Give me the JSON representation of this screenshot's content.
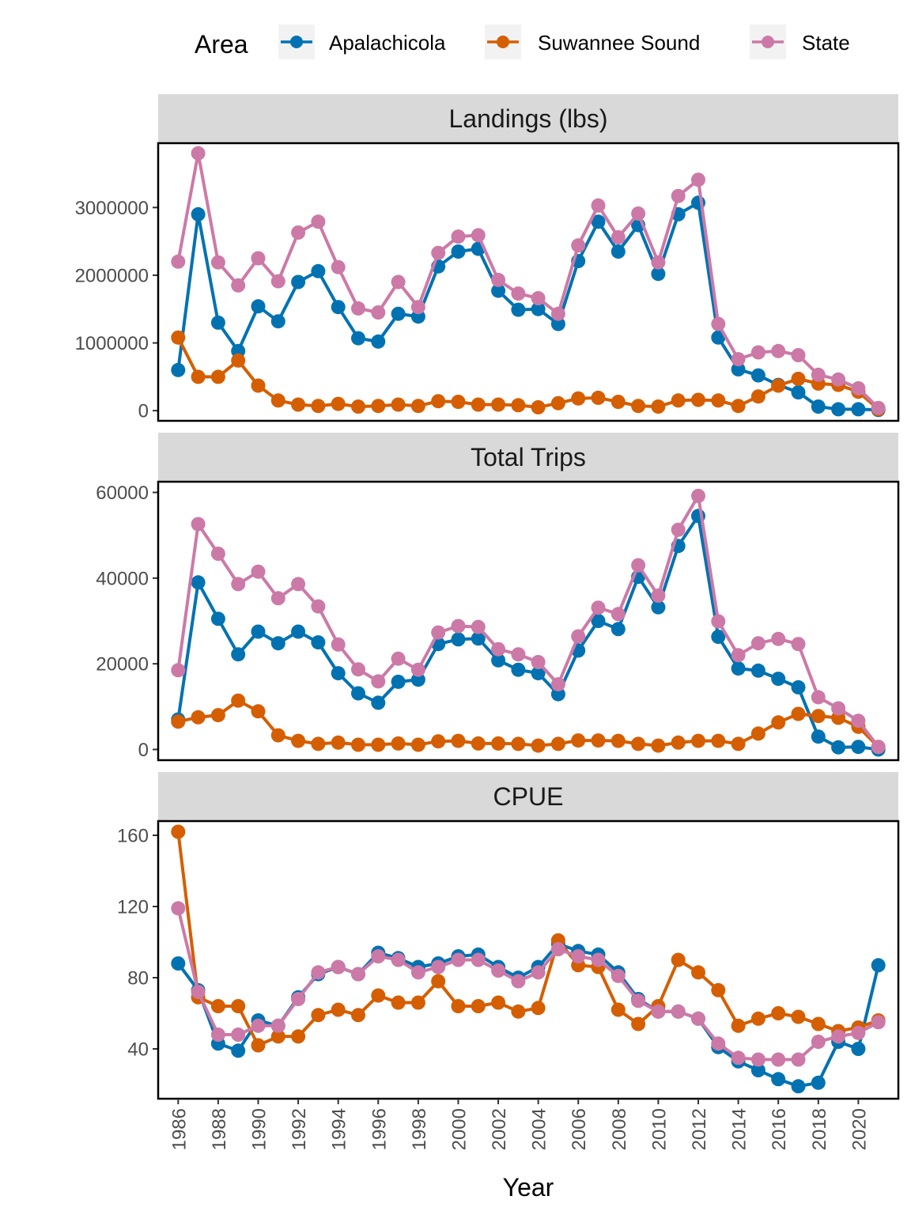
{
  "legend": {
    "title": "Area",
    "position": "top",
    "entries": [
      {
        "name": "Apalachicola",
        "color": "#0072B2"
      },
      {
        "name": "Suwannee Sound",
        "color": "#D55E00"
      },
      {
        "name": "State",
        "color": "#CC79A7"
      }
    ]
  },
  "xlabel": "Year",
  "chart_data": {
    "type": "line",
    "x": [
      1986,
      1987,
      1988,
      1989,
      1990,
      1991,
      1992,
      1993,
      1994,
      1995,
      1996,
      1997,
      1998,
      1999,
      2000,
      2001,
      2002,
      2003,
      2004,
      2005,
      2006,
      2007,
      2008,
      2009,
      2010,
      2011,
      2012,
      2013,
      2014,
      2015,
      2016,
      2017,
      2018,
      2019,
      2020,
      2021
    ],
    "x_ticks": [
      1986,
      1988,
      1990,
      1992,
      1994,
      1996,
      1998,
      2000,
      2002,
      2004,
      2006,
      2008,
      2010,
      2012,
      2014,
      2016,
      2018,
      2020
    ],
    "xlim": [
      1985,
      2022
    ],
    "xlabel": "Year",
    "panels": [
      {
        "title": "Landings (lbs)",
        "ylim": [
          -150000,
          3950000
        ],
        "y_ticks": [
          0,
          1000000,
          2000000,
          3000000
        ],
        "y_tick_labels": [
          "0",
          "1000000",
          "2000000",
          "3000000"
        ],
        "series": [
          {
            "name": "Apalachicola",
            "values": [
              600000,
              2900000,
              1300000,
              880000,
              1540000,
              1320000,
              1900000,
              2060000,
              1530000,
              1070000,
              1020000,
              1430000,
              1390000,
              2130000,
              2350000,
              2390000,
              1770000,
              1490000,
              1500000,
              1280000,
              2210000,
              2790000,
              2350000,
              2740000,
              2020000,
              2900000,
              3070000,
              1080000,
              610000,
              520000,
              380000,
              270000,
              60000,
              20000,
              20000,
              10000
            ]
          },
          {
            "name": "Suwannee Sound",
            "values": [
              1080000,
              500000,
              500000,
              740000,
              370000,
              150000,
              90000,
              70000,
              100000,
              60000,
              70000,
              90000,
              70000,
              140000,
              130000,
              90000,
              90000,
              80000,
              50000,
              110000,
              180000,
              190000,
              130000,
              70000,
              60000,
              150000,
              160000,
              150000,
              70000,
              210000,
              370000,
              470000,
              400000,
              380000,
              280000,
              20000
            ]
          },
          {
            "name": "State",
            "values": [
              2200000,
              3800000,
              2190000,
              1850000,
              2250000,
              1910000,
              2630000,
              2790000,
              2120000,
              1510000,
              1450000,
              1900000,
              1530000,
              2330000,
              2570000,
              2590000,
              1930000,
              1730000,
              1660000,
              1430000,
              2440000,
              3030000,
              2560000,
              2910000,
              2190000,
              3170000,
              3410000,
              1280000,
              760000,
              860000,
              880000,
              820000,
              530000,
              460000,
              330000,
              40000
            ]
          }
        ]
      },
      {
        "title": "Total Trips",
        "ylim": [
          -2500,
          62500
        ],
        "y_ticks": [
          0,
          20000,
          40000,
          60000
        ],
        "y_tick_labels": [
          "0",
          "20000",
          "40000",
          "60000"
        ],
        "series": [
          {
            "name": "Apalachicola",
            "values": [
              7000,
              39000,
              30500,
              22200,
              27500,
              24800,
              27500,
              25000,
              17800,
              13100,
              10900,
              15800,
              16300,
              24600,
              25700,
              25900,
              20800,
              18600,
              17800,
              12900,
              23100,
              30000,
              28100,
              40300,
              33200,
              47500,
              54500,
              26300,
              18900,
              18400,
              16500,
              14500,
              3000,
              500,
              600,
              0
            ]
          },
          {
            "name": "Suwannee Sound",
            "values": [
              6500,
              7500,
              8000,
              11400,
              8900,
              3300,
              2000,
              1300,
              1600,
              1100,
              1100,
              1400,
              1100,
              1900,
              2000,
              1400,
              1400,
              1300,
              900,
              1300,
              2100,
              2100,
              2000,
              1300,
              900,
              1600,
              2000,
              2000,
              1300,
              3700,
              6300,
              8300,
              7800,
              7400,
              5300,
              600
            ]
          },
          {
            "name": "State",
            "values": [
              18500,
              52600,
              45700,
              38600,
              41500,
              35300,
              38600,
              33400,
              24500,
              18700,
              15900,
              21200,
              18600,
              27300,
              28800,
              28600,
              23400,
              22200,
              20400,
              15200,
              26400,
              33100,
              31600,
              43000,
              35900,
              51300,
              59200,
              29900,
              22000,
              24800,
              25800,
              24600,
              12200,
              9600,
              6700,
              600
            ]
          }
        ]
      },
      {
        "title": "CPUE",
        "ylim": [
          12,
          168
        ],
        "y_ticks": [
          40,
          80,
          120,
          160
        ],
        "y_tick_labels": [
          "40",
          "80",
          "120",
          "160"
        ],
        "series": [
          {
            "name": "Apalachicola",
            "values": [
              88,
              73,
              43,
              39,
              56,
              53,
              69,
              82,
              86,
              82,
              94,
              91,
              86,
              88,
              92,
              93,
              86,
              80,
              86,
              99,
              95,
              93,
              83,
              68,
              61,
              61,
              57,
              41,
              33,
              28,
              23,
              19,
              21,
              44,
              40,
              87
            ]
          },
          {
            "name": "Suwannee Sound",
            "values": [
              162,
              69,
              64,
              64,
              42,
              47,
              47,
              59,
              62,
              59,
              70,
              66,
              66,
              78,
              64,
              64,
              66,
              61,
              63,
              101,
              87,
              86,
              62,
              54,
              64,
              90,
              83,
              73,
              53,
              57,
              60,
              58,
              54,
              50,
              52,
              56
            ]
          },
          {
            "name": "State",
            "values": [
              119,
              72,
              48,
              48,
              53,
              53,
              68,
              83,
              86,
              82,
              92,
              90,
              83,
              86,
              90,
              90,
              84,
              78,
              83,
              96,
              92,
              90,
              81,
              67,
              61,
              61,
              57,
              43,
              35,
              34,
              34,
              34,
              44,
              47,
              49,
              55
            ]
          }
        ]
      }
    ],
    "grid": false,
    "legend_position": "top"
  }
}
